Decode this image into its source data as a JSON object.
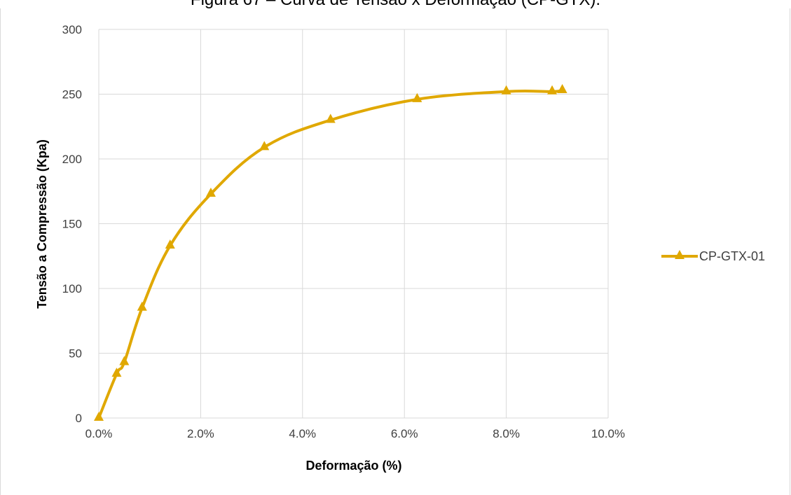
{
  "caption": "Figura 67 – Curva de Tensão x Deformação (CP-GTX).",
  "chart_data": {
    "type": "line",
    "title": "",
    "xlabel": "Deformação (%)",
    "ylabel": "Tensão a Compressão (Kpa)",
    "xlim": [
      0,
      10
    ],
    "ylim": [
      0,
      300
    ],
    "x_ticks": [
      "0.0%",
      "2.0%",
      "4.0%",
      "6.0%",
      "8.0%",
      "10.0%"
    ],
    "y_ticks": [
      "0",
      "50",
      "100",
      "150",
      "200",
      "250",
      "300"
    ],
    "grid": true,
    "legend_position": "right",
    "series": [
      {
        "name": "CP-GTX-01",
        "color": "#E0A800",
        "marker": "triangle",
        "x": [
          0.0,
          0.35,
          0.5,
          0.85,
          1.4,
          2.2,
          3.25,
          4.55,
          6.25,
          8.0,
          8.9,
          9.1
        ],
        "y": [
          0,
          34,
          43,
          85,
          133,
          173,
          209,
          230,
          246,
          252,
          252,
          253
        ]
      }
    ]
  }
}
